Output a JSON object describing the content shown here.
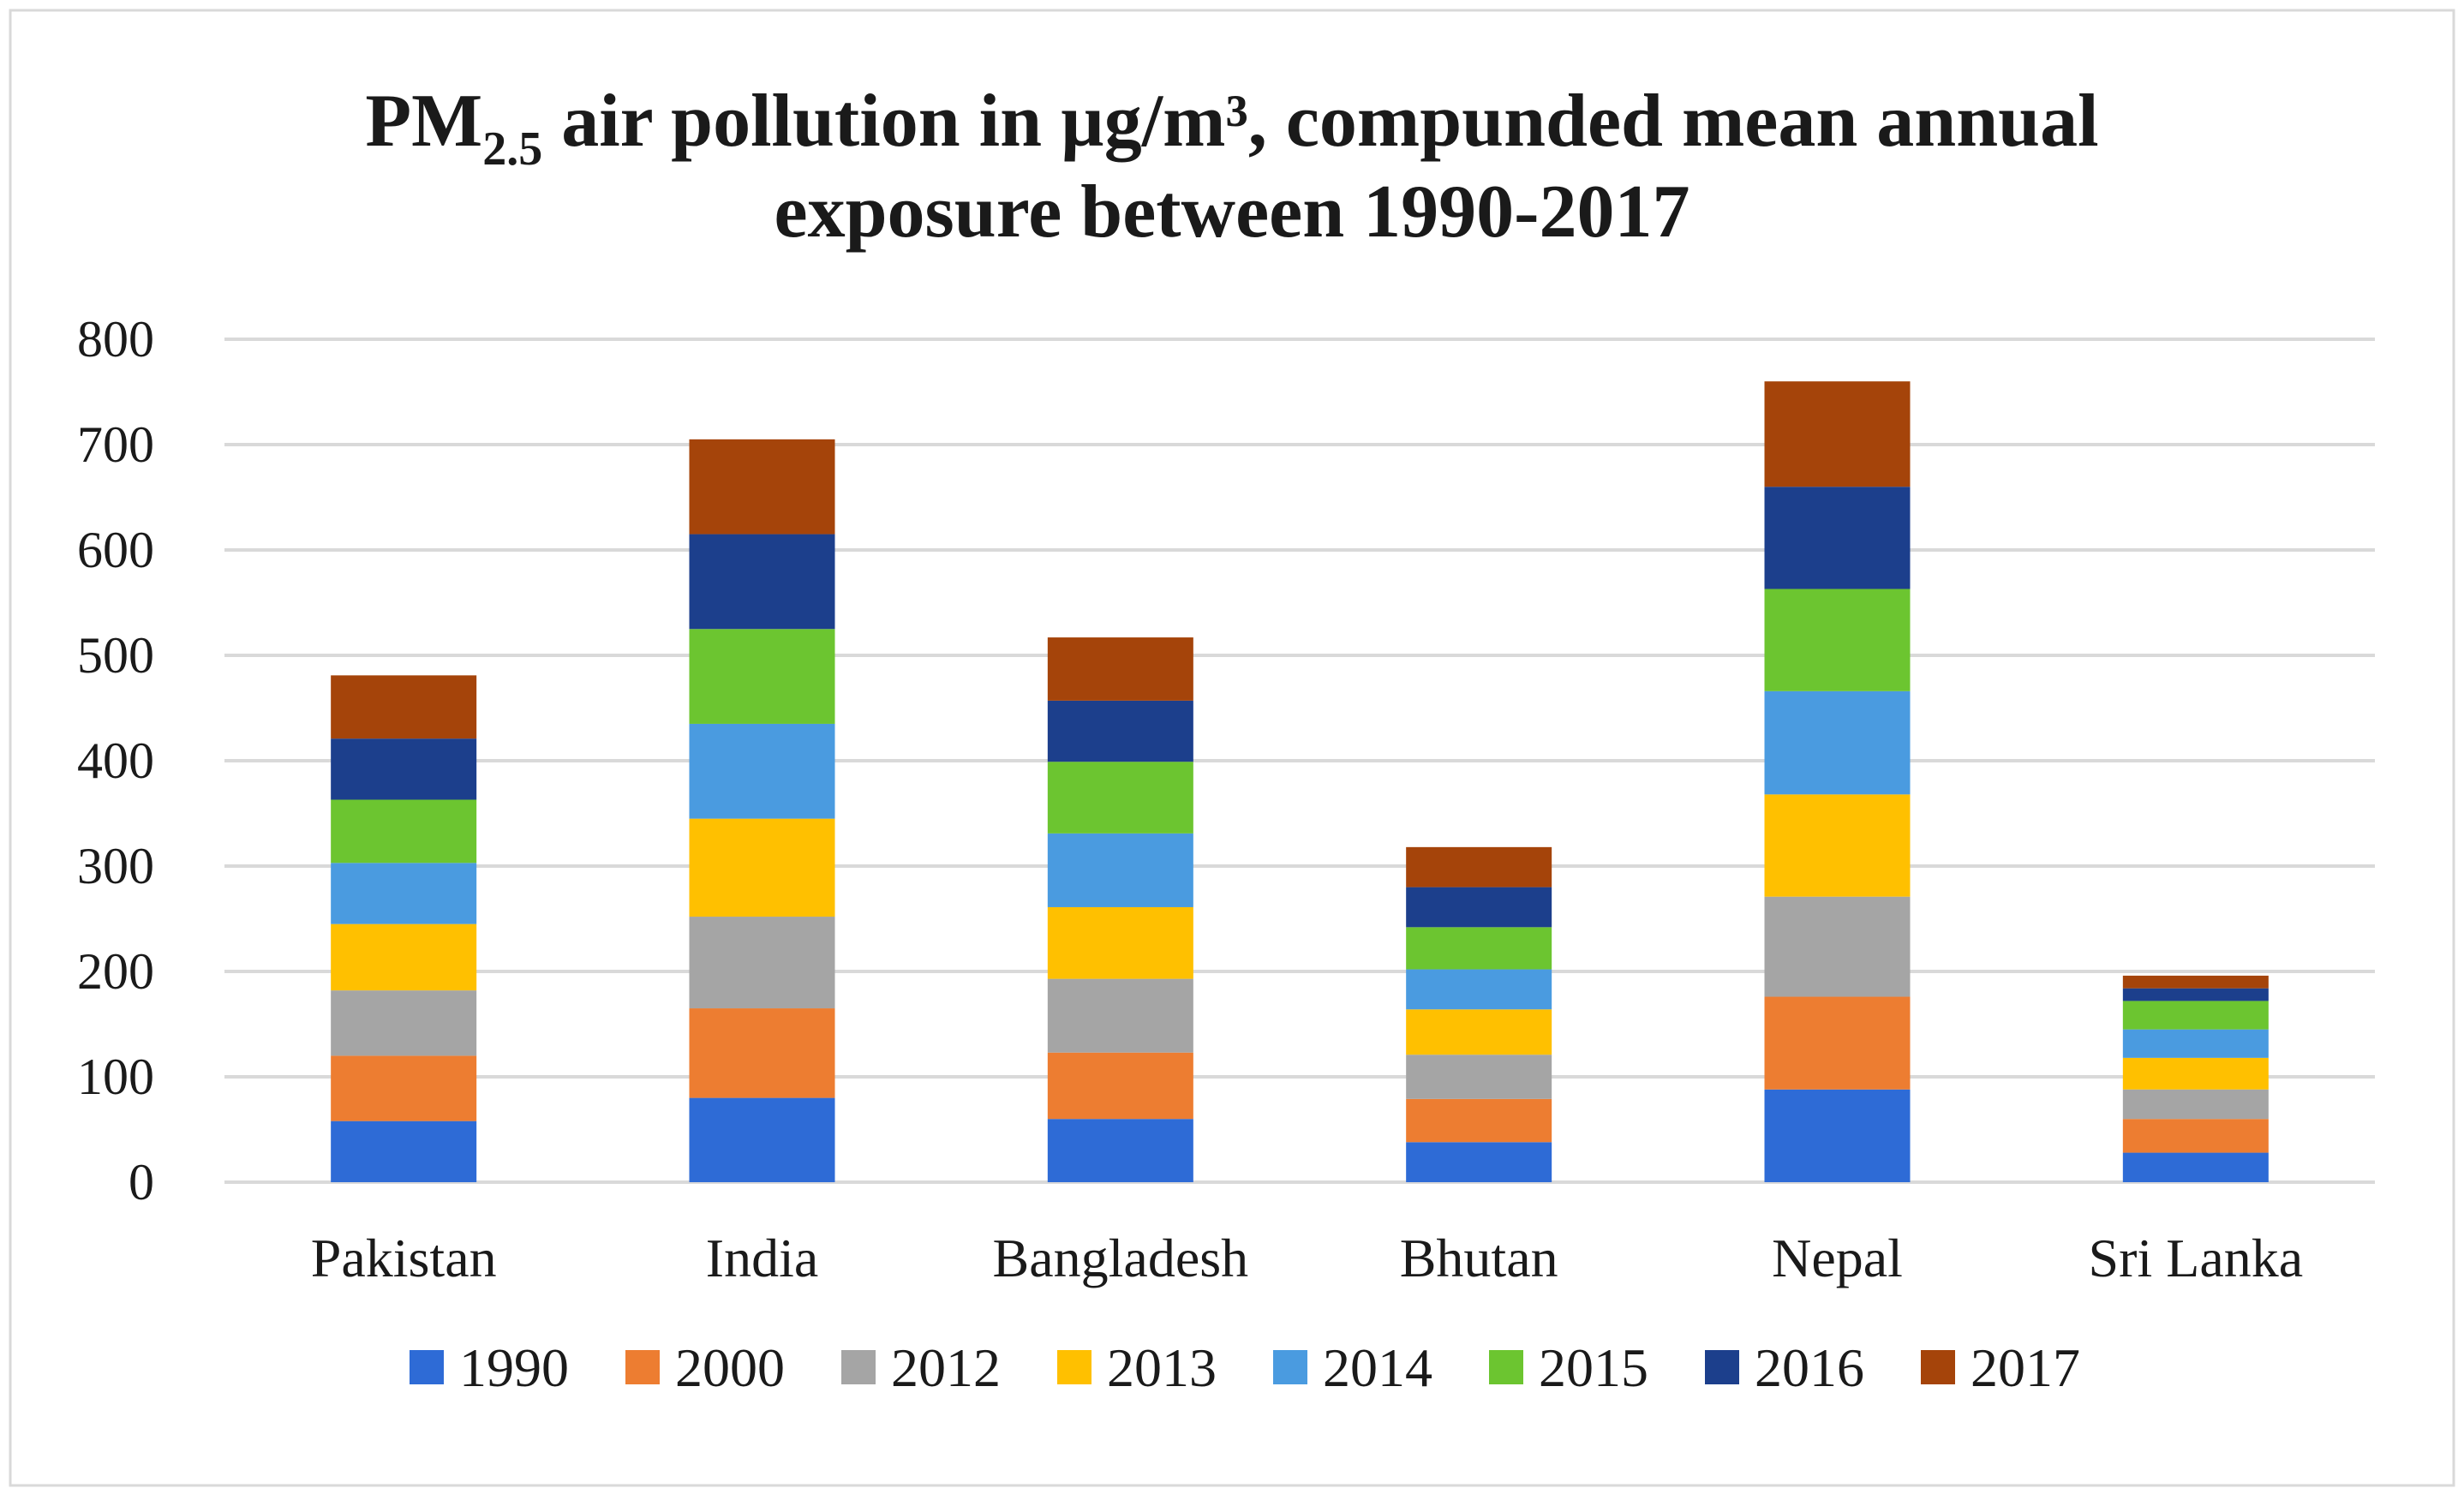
{
  "chart_data": {
    "type": "bar",
    "stacked": true,
    "title_line1_main": "PM",
    "title_line1_sub": "2.5",
    "title_line1_rest": " air pollution in µg/m³, compunded mean annual",
    "title_line2": "exposure between 1990-2017",
    "xlabel": "",
    "ylabel": "",
    "ylim": [
      0,
      800
    ],
    "yticks": [
      0,
      100,
      200,
      300,
      400,
      500,
      600,
      700,
      800
    ],
    "ytick_labels": [
      "0",
      "100",
      "200",
      "300",
      "400",
      "500",
      "600",
      "700",
      "800"
    ],
    "grid": true,
    "legend_position": "bottom",
    "categories": [
      "Pakistan",
      "India",
      "Bangladesh",
      "Bhutan",
      "Nepal",
      "Sri Lanka"
    ],
    "series": [
      {
        "name": "1990",
        "color": "#2e6bd6",
        "values": [
          58,
          80,
          60,
          38,
          88,
          28
        ]
      },
      {
        "name": "2000",
        "color": "#ed7d31",
        "values": [
          62,
          85,
          63,
          41,
          88,
          32
        ]
      },
      {
        "name": "2012",
        "color": "#a5a5a5",
        "values": [
          62,
          87,
          70,
          42,
          95,
          28
        ]
      },
      {
        "name": "2013",
        "color": "#ffc000",
        "values": [
          63,
          93,
          68,
          43,
          97,
          30
        ]
      },
      {
        "name": "2014",
        "color": "#4a9be0",
        "values": [
          58,
          90,
          70,
          38,
          98,
          27
        ]
      },
      {
        "name": "2015",
        "color": "#6cc530",
        "values": [
          60,
          90,
          68,
          40,
          97,
          27
        ]
      },
      {
        "name": "2016",
        "color": "#1c3f8c",
        "values": [
          58,
          90,
          58,
          38,
          97,
          12
        ]
      },
      {
        "name": "2017",
        "color": "#a5440a",
        "values": [
          60,
          90,
          60,
          38,
          100,
          12
        ]
      }
    ]
  }
}
